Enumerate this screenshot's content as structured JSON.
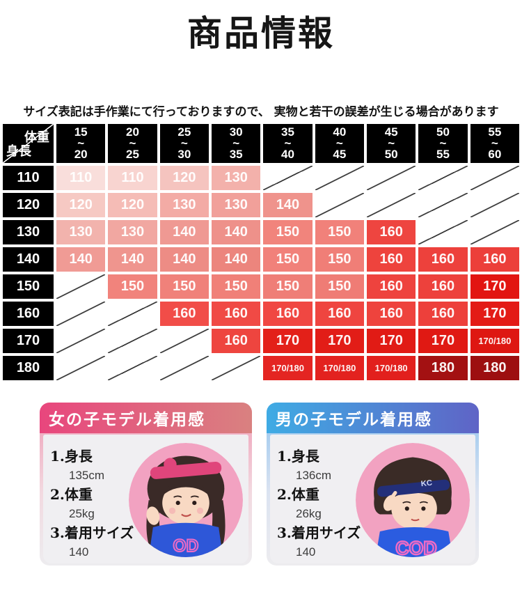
{
  "title": "商品情報",
  "notice": "サイズ表記は手作業にて行っておりますので、 実物と若干の誤差が生じる場合があります",
  "size_chart": {
    "corner": {
      "weight_label": "体重",
      "height_label": "身長"
    },
    "weight_columns": [
      "15\n~\n20",
      "20\n~\n25",
      "25\n~\n30",
      "30\n~\n35",
      "35\n~\n40",
      "40\n~\n45",
      "45\n~\n50",
      "50\n~\n55",
      "55\n~\n60"
    ],
    "rows": [
      {
        "height": "110",
        "cells": [
          {
            "v": "110",
            "bg": "#f9dedb"
          },
          {
            "v": "110",
            "bg": "#f8d4d0"
          },
          {
            "v": "120",
            "bg": "#f5c4bf"
          },
          {
            "v": "130",
            "bg": "#f3b1ab"
          },
          null,
          null,
          null,
          null,
          null
        ]
      },
      {
        "height": "120",
        "cells": [
          {
            "v": "120",
            "bg": "#f6c9c3"
          },
          {
            "v": "120",
            "bg": "#f5bcb6"
          },
          {
            "v": "130",
            "bg": "#f3aba5"
          },
          {
            "v": "130",
            "bg": "#f1a09a"
          },
          {
            "v": "140",
            "bg": "#ef938c"
          },
          null,
          null,
          null,
          null
        ]
      },
      {
        "height": "130",
        "cells": [
          {
            "v": "130",
            "bg": "#f2b3ad"
          },
          {
            "v": "130",
            "bg": "#f1a7a1"
          },
          {
            "v": "140",
            "bg": "#ef9993"
          },
          {
            "v": "140",
            "bg": "#ee918a"
          },
          {
            "v": "150",
            "bg": "#f1847c"
          },
          {
            "v": "150",
            "bg": "#f1817a"
          },
          {
            "v": "160",
            "bg": "#ee4540"
          },
          null,
          null
        ]
      },
      {
        "height": "140",
        "cells": [
          {
            "v": "140",
            "bg": "#f09b95"
          },
          {
            "v": "140",
            "bg": "#ef958e"
          },
          {
            "v": "140",
            "bg": "#ed8c85"
          },
          {
            "v": "140",
            "bg": "#ec857d"
          },
          {
            "v": "150",
            "bg": "#f1817a"
          },
          {
            "v": "150",
            "bg": "#f07e77"
          },
          {
            "v": "160",
            "bg": "#ee433d"
          },
          {
            "v": "160",
            "bg": "#ed413c"
          },
          {
            "v": "160",
            "bg": "#ec3f3a"
          }
        ]
      },
      {
        "height": "150",
        "cells": [
          null,
          {
            "v": "150",
            "bg": "#f1837c"
          },
          {
            "v": "150",
            "bg": "#f0817a"
          },
          {
            "v": "150",
            "bg": "#f08078"
          },
          {
            "v": "150",
            "bg": "#ef7e77"
          },
          {
            "v": "150",
            "bg": "#ef7c75"
          },
          {
            "v": "160",
            "bg": "#ee433e"
          },
          {
            "v": "160",
            "bg": "#ed413c"
          },
          {
            "v": "170",
            "bg": "#e21511"
          }
        ]
      },
      {
        "height": "160",
        "cells": [
          null,
          null,
          {
            "v": "160",
            "bg": "#f14d48"
          },
          {
            "v": "160",
            "bg": "#f04a45"
          },
          {
            "v": "160",
            "bg": "#f04742"
          },
          {
            "v": "160",
            "bg": "#ef4540"
          },
          {
            "v": "160",
            "bg": "#ee433d"
          },
          {
            "v": "160",
            "bg": "#ed403b"
          },
          {
            "v": "170",
            "bg": "#e31b16"
          }
        ]
      },
      {
        "height": "170",
        "cells": [
          null,
          null,
          null,
          {
            "v": "160",
            "bg": "#ee453f"
          },
          {
            "v": "170",
            "bg": "#e32019"
          },
          {
            "v": "170",
            "bg": "#e21d17"
          },
          {
            "v": "170",
            "bg": "#e11b15"
          },
          {
            "v": "170",
            "bg": "#e01913"
          },
          {
            "v": "170/180",
            "bg": "#de1712"
          }
        ]
      },
      {
        "height": "180",
        "cells": [
          null,
          null,
          null,
          null,
          {
            "v": "170/180",
            "bg": "#e42522"
          },
          {
            "v": "170/180",
            "bg": "#e3221f"
          },
          {
            "v": "170/180",
            "bg": "#e2201d"
          },
          {
            "v": "180",
            "bg": "#a31112"
          },
          {
            "v": "180",
            "bg": "#9d0f10"
          }
        ]
      }
    ]
  },
  "cards": [
    {
      "header": "女の子モデル着用感",
      "header_colors": [
        "#e8467d",
        "#d98180"
      ],
      "frame_colors": [
        "#ef9ab4",
        "#f2d9e0",
        "#edecef"
      ],
      "photo_bg": "#f2a2c1",
      "items": [
        {
          "label": "1.身長",
          "value": "135cm"
        },
        {
          "label": "2.体重",
          "value": "25kg"
        },
        {
          "label": "3.着用サイズ",
          "value": "140"
        }
      ]
    },
    {
      "header": "男の子モデル着用感",
      "header_colors": [
        "#3fabe4",
        "#5f64c6"
      ],
      "frame_colors": [
        "#8fc3ee",
        "#dbe3f1",
        "#edecef"
      ],
      "photo_bg": "#f2a2c1",
      "items": [
        {
          "label": "1.身長",
          "value": "136cm"
        },
        {
          "label": "2.体重",
          "value": "26kg"
        },
        {
          "label": "3.着用サイズ",
          "value": "140"
        }
      ]
    }
  ]
}
